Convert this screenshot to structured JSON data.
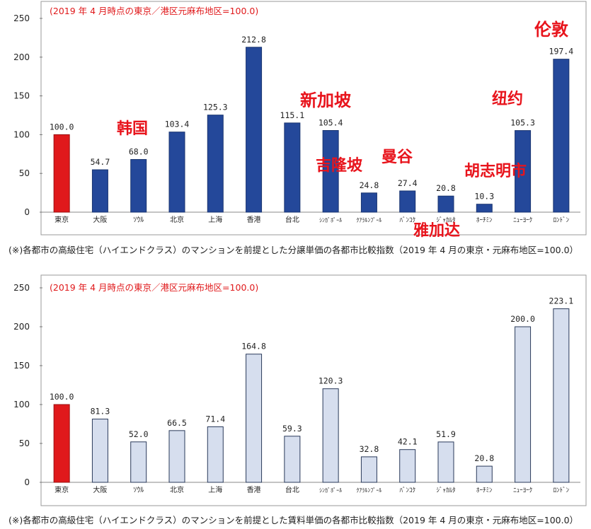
{
  "chart_data": [
    {
      "type": "bar",
      "title": "(2019 年 4 月時点の東京／港区元麻布地区=100.0)",
      "categories": [
        "東京",
        "大阪",
        "ｿｳﾙ",
        "北京",
        "上海",
        "香港",
        "台北",
        "ｼﾝｶﾞﾎﾟｰﾙ",
        "ｸｱﾗﾙﾝﾌﾟｰﾙ",
        "ﾊﾞﾝｺｸ",
        "ｼﾞｬｶﾙﾀ",
        "ﾎｰﾁﾐﾝ",
        "ﾆｭｰﾖｰｸ",
        "ﾛﾝﾄﾞﾝ"
      ],
      "values": [
        100.0,
        54.7,
        68.0,
        103.4,
        125.3,
        212.8,
        115.1,
        105.4,
        24.8,
        27.4,
        20.8,
        10.3,
        105.3,
        197.4
      ],
      "value_labels": [
        "100.0",
        "54.7",
        "68.0",
        "103.4",
        "125.3",
        "212.8",
        "115.1",
        "105.4",
        "24.8",
        "27.4",
        "20.8",
        "10.3",
        "105.3",
        "197.4"
      ],
      "highlight_index": 0,
      "yticks": [
        0,
        50,
        100,
        150,
        200,
        250
      ],
      "ylim": [
        0,
        250
      ],
      "xlabel": "",
      "ylabel": "",
      "colors": {
        "bar": "#24489a",
        "highlight": "#e0191b",
        "bar_edge": "#1a3570"
      },
      "caption": "(※)各都市の高級住宅（ハイエンドクラス）のマンションを前提とした分譲単価の各都市比較指数（2019 年 4 月の東京・元麻布地区=100.0）"
    },
    {
      "type": "bar",
      "title": "(2019 年 4 月時点の東京／港区元麻布地区=100.0)",
      "categories": [
        "東京",
        "大阪",
        "ｿｳﾙ",
        "北京",
        "上海",
        "香港",
        "台北",
        "ｼﾝｶﾞﾎﾟｰﾙ",
        "ｸｱﾗﾙﾝﾌﾟｰﾙ",
        "ﾊﾞﾝｺｸ",
        "ｼﾞｬｶﾙﾀ",
        "ﾎｰﾁﾐﾝ",
        "ﾆｭｰﾖｰｸ",
        "ﾛﾝﾄﾞﾝ"
      ],
      "values": [
        100.0,
        81.3,
        52.0,
        66.5,
        71.4,
        164.8,
        59.3,
        120.3,
        32.8,
        42.1,
        51.9,
        20.8,
        200.0,
        223.1
      ],
      "value_labels": [
        "100.0",
        "81.3",
        "52.0",
        "66.5",
        "71.4",
        "164.8",
        "59.3",
        "120.3",
        "32.8",
        "42.1",
        "51.9",
        "20.8",
        "200.0",
        "223.1"
      ],
      "highlight_index": 0,
      "yticks": [
        0,
        50,
        100,
        150,
        200,
        250
      ],
      "ylim": [
        0,
        250
      ],
      "xlabel": "",
      "ylabel": "",
      "colors": {
        "bar": "#d6deee",
        "highlight": "#e0191b",
        "bar_edge": "#2a3a5a"
      },
      "caption": "(※)各都市の高級住宅（ハイエンドクラス）のマンションを前提とした賃料単価の各都市比較指数（2019 年 4 月の東京・元麻布地区=100.0）"
    }
  ],
  "annotations": [
    "韩国",
    "新加坡",
    "吉隆坡",
    "曼谷",
    "雅加达",
    "胡志明市",
    "纽约",
    "伦敦"
  ],
  "colors": {
    "frame": "#9a9a9a",
    "title": "#e0191b",
    "annotation": "#e8141c",
    "text": "#222222"
  }
}
